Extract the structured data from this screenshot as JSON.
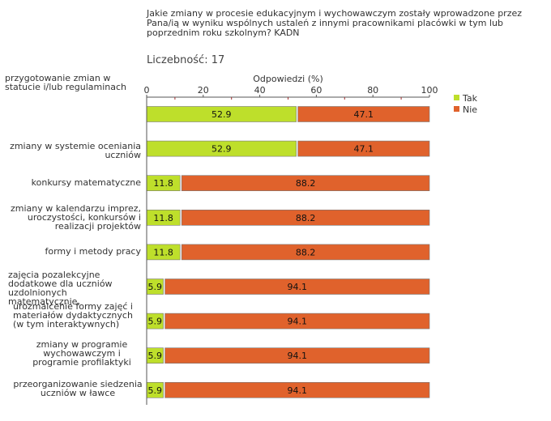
{
  "question": "Jakie zmiany w procesie edukacyjnym i wychowawczym zostały wprowadzone przez Pana/ią w wyniku wspólnych ustaleń z innymi pracownikami placówki w tym lub poprzednim roku szkolnym? KADN",
  "count_label": "Liczebność: 17",
  "colors": {
    "tak": "#bedf2b",
    "nie": "#e0622c",
    "axis": "#555555",
    "tick": "#a03030"
  },
  "chart_data": {
    "type": "bar",
    "orientation": "horizontal",
    "stacked": true,
    "title": "Jakie zmiany w procesie edukacyjnym i wychowawczym zostały wprowadzone przez Pana/ią w wyniku wspólnych ustaleń z innymi pracownikami placówki w tym lub poprzednim roku szkolnym? KADN",
    "xlabel": "Odpowiedzi (%)",
    "ylabel": "",
    "xlim": [
      0,
      100
    ],
    "xticks": [
      0,
      20,
      40,
      60,
      80,
      100
    ],
    "legend_position": "top-right",
    "categories": [
      "przygotowanie zmian w statucie i/lub regulaminach",
      "zmiany w systemie oceniania uczniów",
      "konkursy matematyczne",
      "zmiany w kalendarzu imprez, uroczystości, konkursów i realizacji projektów",
      "formy i metody pracy",
      "zajęcia pozalekcyjne dodatkowe dla uczniów uzdolnionych matematycznie,",
      "urozmaicenie formy zajęć i materiałów dydaktycznych (w tym interaktywnych)",
      "zmiany w programie wychowawczym i programie profilaktyki",
      "przeorganizowanie siedzenia uczniów w ławce"
    ],
    "series": [
      {
        "name": "Tak",
        "values": [
          52.9,
          52.9,
          11.8,
          11.8,
          11.8,
          5.9,
          5.9,
          5.9,
          5.9
        ]
      },
      {
        "name": "Nie",
        "values": [
          47.1,
          47.1,
          88.2,
          88.2,
          88.2,
          94.1,
          94.1,
          94.1,
          94.1
        ]
      }
    ]
  }
}
